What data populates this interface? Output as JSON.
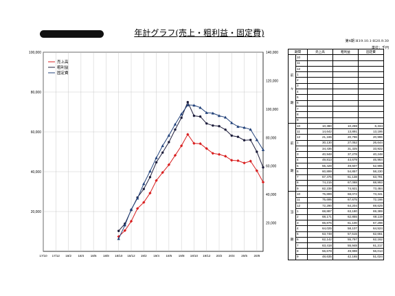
{
  "header": {
    "title": "年計グラフ(売上・粗利益・固定費)",
    "period": "第4期 H19.10.1-H20.9.30",
    "unit": "単位：千円"
  },
  "table": {
    "headers": [
      "期間",
      "売上高",
      "粗利益",
      "固定費"
    ],
    "groups": [
      {
        "label": [
          "前",
          "々",
          "期"
        ],
        "rows": [
          {
            "m": "10",
            "v": [
              "",
              "",
              ""
            ]
          },
          {
            "m": "11",
            "v": [
              "",
              "",
              ""
            ]
          },
          {
            "m": "12",
            "v": [
              "",
              "",
              ""
            ]
          },
          {
            "m": "1",
            "v": [
              "",
              "",
              ""
            ]
          },
          {
            "m": "2",
            "v": [
              "",
              "",
              ""
            ]
          },
          {
            "m": "3",
            "v": [
              "",
              "",
              ""
            ]
          },
          {
            "m": "4",
            "v": [
              "",
              "",
              ""
            ]
          },
          {
            "m": "5",
            "v": [
              "",
              "",
              ""
            ]
          },
          {
            "m": "6",
            "v": [
              "",
              "",
              ""
            ]
          },
          {
            "m": "7",
            "v": [
              "",
              "",
              ""
            ]
          },
          {
            "m": "8",
            "v": [
              "",
              "",
              ""
            ]
          },
          {
            "m": "9",
            "v": [
              "",
              "",
              ""
            ]
          }
        ]
      },
      {
        "label": [
          "前",
          "",
          "期"
        ],
        "rows": [
          {
            "m": "10",
            "v": [
              "10,380",
              "10,259",
              "6,334"
            ]
          },
          {
            "m": "11",
            "v": [
              "14,642",
              "13,891",
              "13,186"
            ]
          },
          {
            "m": "12",
            "v": [
              "21,165",
              "20,796",
              "20,996"
            ]
          },
          {
            "m": "1",
            "v": [
              "30,130",
              "27,052",
              "26,644"
            ]
          },
          {
            "m": "2",
            "v": [
              "34,436",
              "31,325",
              "33,922"
            ]
          },
          {
            "m": "3",
            "v": [
              "40,948",
              "37,278",
              "40,248"
            ]
          },
          {
            "m": "4",
            "v": [
              "49,813",
              "44,679",
              "46,964"
            ]
          },
          {
            "m": "5",
            "v": [
              "55,428",
              "49,607",
              "52,996"
            ]
          },
          {
            "m": "6",
            "v": [
              "60,899",
              "54,857",
              "58,230"
            ]
          },
          {
            "m": "7",
            "v": [
              "67,475",
              "61,138",
              "63,791"
            ]
          },
          {
            "m": "8",
            "v": [
              "74,215",
              "67,088",
              "68,993"
            ]
          },
          {
            "m": "9",
            "v": [
              "82,238",
              "74,921",
              "73,484"
            ]
          }
        ]
      },
      {
        "label": [
          "当",
          "",
          "期"
        ],
        "rows": [
          {
            "m": "10",
            "v": [
              "75,899",
              "68,072",
              "73,341"
            ]
          },
          {
            "m": "11",
            "v": [
              "75,695",
              "67,675",
              "72,166"
            ]
          },
          {
            "m": "12",
            "v": [
              "72,290",
              "64,204",
              "69,629"
            ]
          },
          {
            "m": "1",
            "v": [
              "68,887",
              "63,180",
              "69,389"
            ]
          },
          {
            "m": "2",
            "v": [
              "68,171",
              "62,855",
              "68,119"
            ]
          },
          {
            "m": "3",
            "v": [
              "66,875",
              "61,100",
              "67,298"
            ]
          },
          {
            "m": "4",
            "v": [
              "64,025",
              "58,107",
              "64,524"
            ]
          },
          {
            "m": "5",
            "v": [
              "63,748",
              "57,515",
              "62,661"
            ]
          },
          {
            "m": "6",
            "v": [
              "62,142",
              "55,797",
              "62,162"
            ]
          },
          {
            "m": "7",
            "v": [
              "63,418",
              "55,948",
              "61,217"
            ]
          },
          {
            "m": "8",
            "v": [
              "56,678",
              "49,998",
              "56,013"
            ]
          },
          {
            "m": "9",
            "v": [
              "48,635",
              "42,165",
              "51,024"
            ]
          }
        ]
      }
    ]
  },
  "chart_data": {
    "type": "line",
    "x": [
      "17/10",
      "17/11",
      "17/12",
      "18/1",
      "18/2",
      "18/3",
      "18/4",
      "18/5",
      "18/6",
      "18/7",
      "18/8",
      "18/9",
      "18/10",
      "18/11",
      "18/12",
      "19/1",
      "19/2",
      "19/3",
      "19/4",
      "19/5",
      "19/6",
      "19/7",
      "19/8",
      "19/9",
      "19/10",
      "19/11",
      "19/12",
      "20/1",
      "20/2",
      "20/3",
      "20/4",
      "20/5",
      "20/6",
      "20/7",
      "20/8",
      "20/9"
    ],
    "xticks": [
      "17/10",
      "17/12",
      "18/2",
      "18/4",
      "18/6",
      "18/8",
      "18/10",
      "18/12",
      "19/2",
      "19/4",
      "19/6",
      "19/8",
      "19/10",
      "19/12",
      "20/2",
      "20/4",
      "20/6",
      "20/8"
    ],
    "yticks_left": [
      "20,000",
      "40,000",
      "60,000",
      "80,000",
      "100,000"
    ],
    "yticks_right": [
      "20,000",
      "40,000",
      "60,000",
      "80,000",
      "100,000",
      "120,000",
      "140,000"
    ],
    "ylim_left": [
      0,
      100000
    ],
    "ylim_right": [
      0,
      140000
    ],
    "grid": true,
    "legend_position": "top-left",
    "series": [
      {
        "name": "売上高",
        "axis": "right",
        "marker": "diamond",
        "color": "#d81e1e",
        "values": [
          null,
          null,
          null,
          null,
          null,
          null,
          null,
          null,
          null,
          null,
          null,
          null,
          10380,
          14642,
          21165,
          30130,
          34436,
          40948,
          49813,
          55428,
          60899,
          67475,
          74215,
          82238,
          75899,
          75695,
          72290,
          68887,
          68171,
          66875,
          64025,
          63748,
          62142,
          63418,
          56678,
          48635
        ]
      },
      {
        "name": "粗利益",
        "axis": "left",
        "marker": "circle",
        "color": "#1c1c3a",
        "values": [
          null,
          null,
          null,
          null,
          null,
          null,
          null,
          null,
          null,
          null,
          null,
          null,
          10259,
          13891,
          20796,
          27052,
          31325,
          37278,
          44679,
          49607,
          54857,
          61138,
          67088,
          74921,
          68072,
          67675,
          64204,
          63180,
          62855,
          61100,
          58107,
          57515,
          55797,
          55948,
          49998,
          42165
        ]
      },
      {
        "name": "固定費",
        "axis": "left",
        "marker": "triangle",
        "color": "#1f3f78",
        "values": [
          null,
          null,
          null,
          null,
          null,
          null,
          null,
          null,
          null,
          null,
          null,
          null,
          6334,
          13186,
          20996,
          26644,
          33922,
          40248,
          46964,
          52996,
          58230,
          63791,
          68993,
          73484,
          73341,
          72166,
          69629,
          69389,
          68119,
          67298,
          64524,
          62661,
          62162,
          61217,
          56013,
          51024
        ]
      }
    ]
  }
}
